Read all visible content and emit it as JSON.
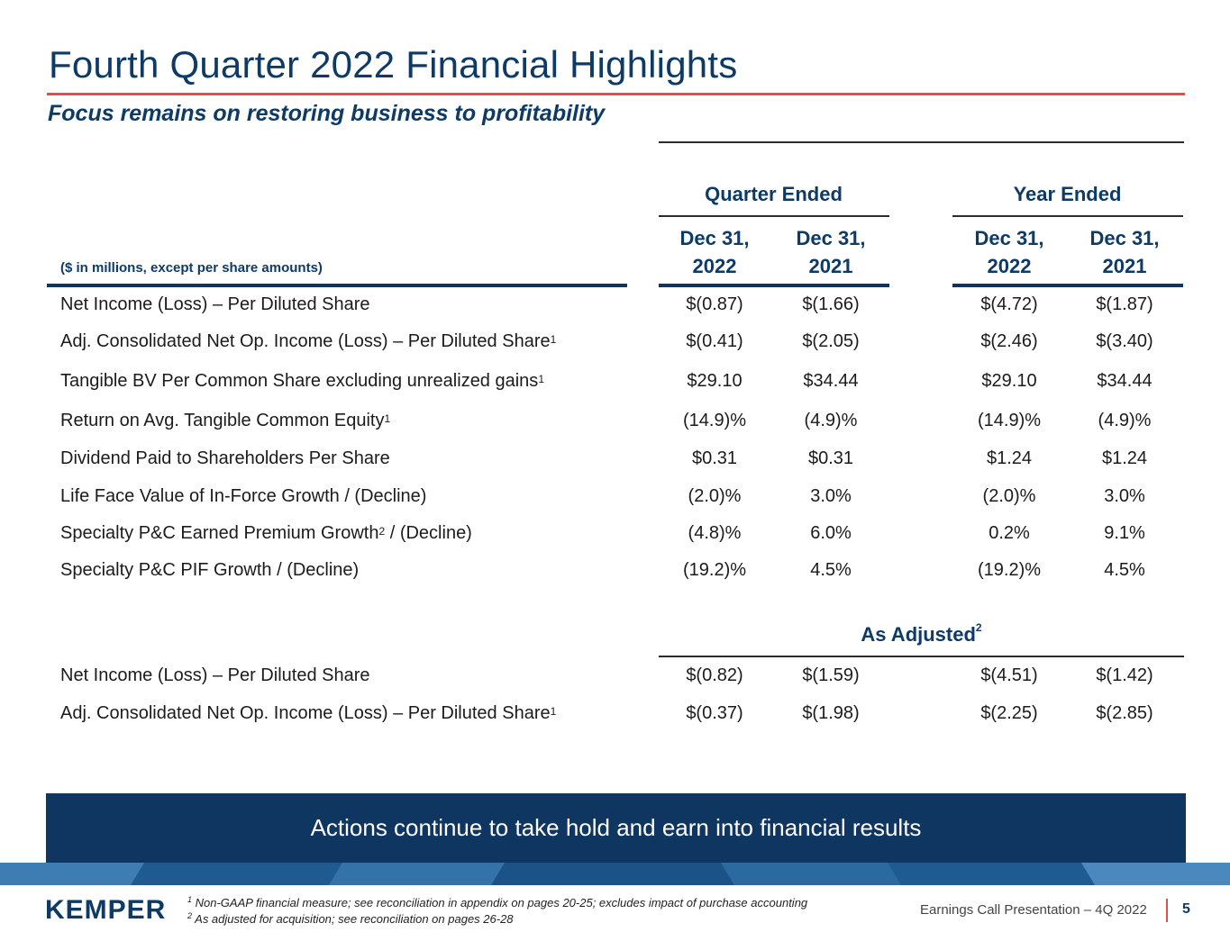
{
  "header": {
    "title": "Fourth Quarter 2022 Financial Highlights",
    "subtitle": "Focus remains on restoring business to profitability"
  },
  "table": {
    "units_label": "($ in millions, except per share amounts)",
    "groups": {
      "quarter": "Quarter Ended",
      "year": "Year Ended",
      "adjusted": "As Adjusted",
      "adjusted_sup": "2"
    },
    "columns": [
      {
        "line1": "Dec 31,",
        "line2": "2022"
      },
      {
        "line1": "Dec 31,",
        "line2": "2021"
      },
      {
        "line1": "Dec 31,",
        "line2": "2022"
      },
      {
        "line1": "Dec 31,",
        "line2": "2021"
      }
    ],
    "rows": [
      {
        "label": "Net Income (Loss) – Per Diluted Share",
        "sup": "",
        "label_after": "",
        "values": [
          "$(0.87)",
          "$(1.66)",
          "$(4.72)",
          "$(1.87)"
        ]
      },
      {
        "label": "Adj. Consolidated Net Op. Income (Loss) – Per Diluted Share",
        "sup": "1",
        "label_after": "",
        "values": [
          "$(0.41)",
          "$(2.05)",
          "$(2.46)",
          "$(3.40)"
        ]
      },
      {
        "label": "Tangible BV Per Common Share excluding unrealized gains",
        "sup": "1",
        "label_after": "",
        "values": [
          "$29.10",
          "$34.44",
          "$29.10",
          "$34.44"
        ]
      },
      {
        "label": "Return on Avg. Tangible Common Equity",
        "sup": "1",
        "label_after": "",
        "values": [
          "(14.9)%",
          "(4.9)%",
          "(14.9)%",
          "(4.9)%"
        ]
      },
      {
        "label": "Dividend Paid to Shareholders Per Share",
        "sup": "",
        "label_after": "",
        "values": [
          "$0.31",
          "$0.31",
          "$1.24",
          "$1.24"
        ]
      },
      {
        "label": "Life Face Value of In-Force Growth / (Decline)",
        "sup": "",
        "label_after": "",
        "values": [
          "(2.0)%",
          "3.0%",
          "(2.0)%",
          "3.0%"
        ]
      },
      {
        "label": "Specialty P&C Earned Premium Growth",
        "sup": "2",
        "label_after": " / (Decline)",
        "values": [
          "(4.8)%",
          "6.0%",
          "0.2%",
          "9.1%"
        ]
      },
      {
        "label": "Specialty P&C PIF Growth / (Decline)",
        "sup": "",
        "label_after": "",
        "values": [
          "(19.2)%",
          "4.5%",
          "(19.2)%",
          "4.5%"
        ]
      }
    ],
    "adjusted_rows": [
      {
        "label": "Net Income (Loss) – Per Diluted Share",
        "sup": "",
        "label_after": "",
        "values": [
          "$(0.82)",
          "$(1.59)",
          "$(4.51)",
          "$(1.42)"
        ]
      },
      {
        "label": "Adj. Consolidated Net Op. Income (Loss) – Per Diluted Share",
        "sup": "1",
        "label_after": "",
        "values": [
          "$(0.37)",
          "$(1.98)",
          "$(2.25)",
          "$(2.85)"
        ]
      }
    ]
  },
  "banner": {
    "text": "Actions continue to take hold and earn into financial results"
  },
  "footer": {
    "logo": "KEMPER",
    "footnotes": [
      {
        "sup": "1",
        "text": " Non-GAAP financial measure; see reconciliation in appendix on pages 20-25; excludes impact of purchase accounting"
      },
      {
        "sup": "2",
        "text": " As adjusted for acquisition; see reconciliation on pages 26-28"
      }
    ],
    "presentation": "Earnings Call Presentation – 4Q 2022",
    "page_number": "5"
  },
  "colors": {
    "navy": "#0e3a66",
    "accent_red": "#d9534a",
    "banner": "#0f3561"
  }
}
